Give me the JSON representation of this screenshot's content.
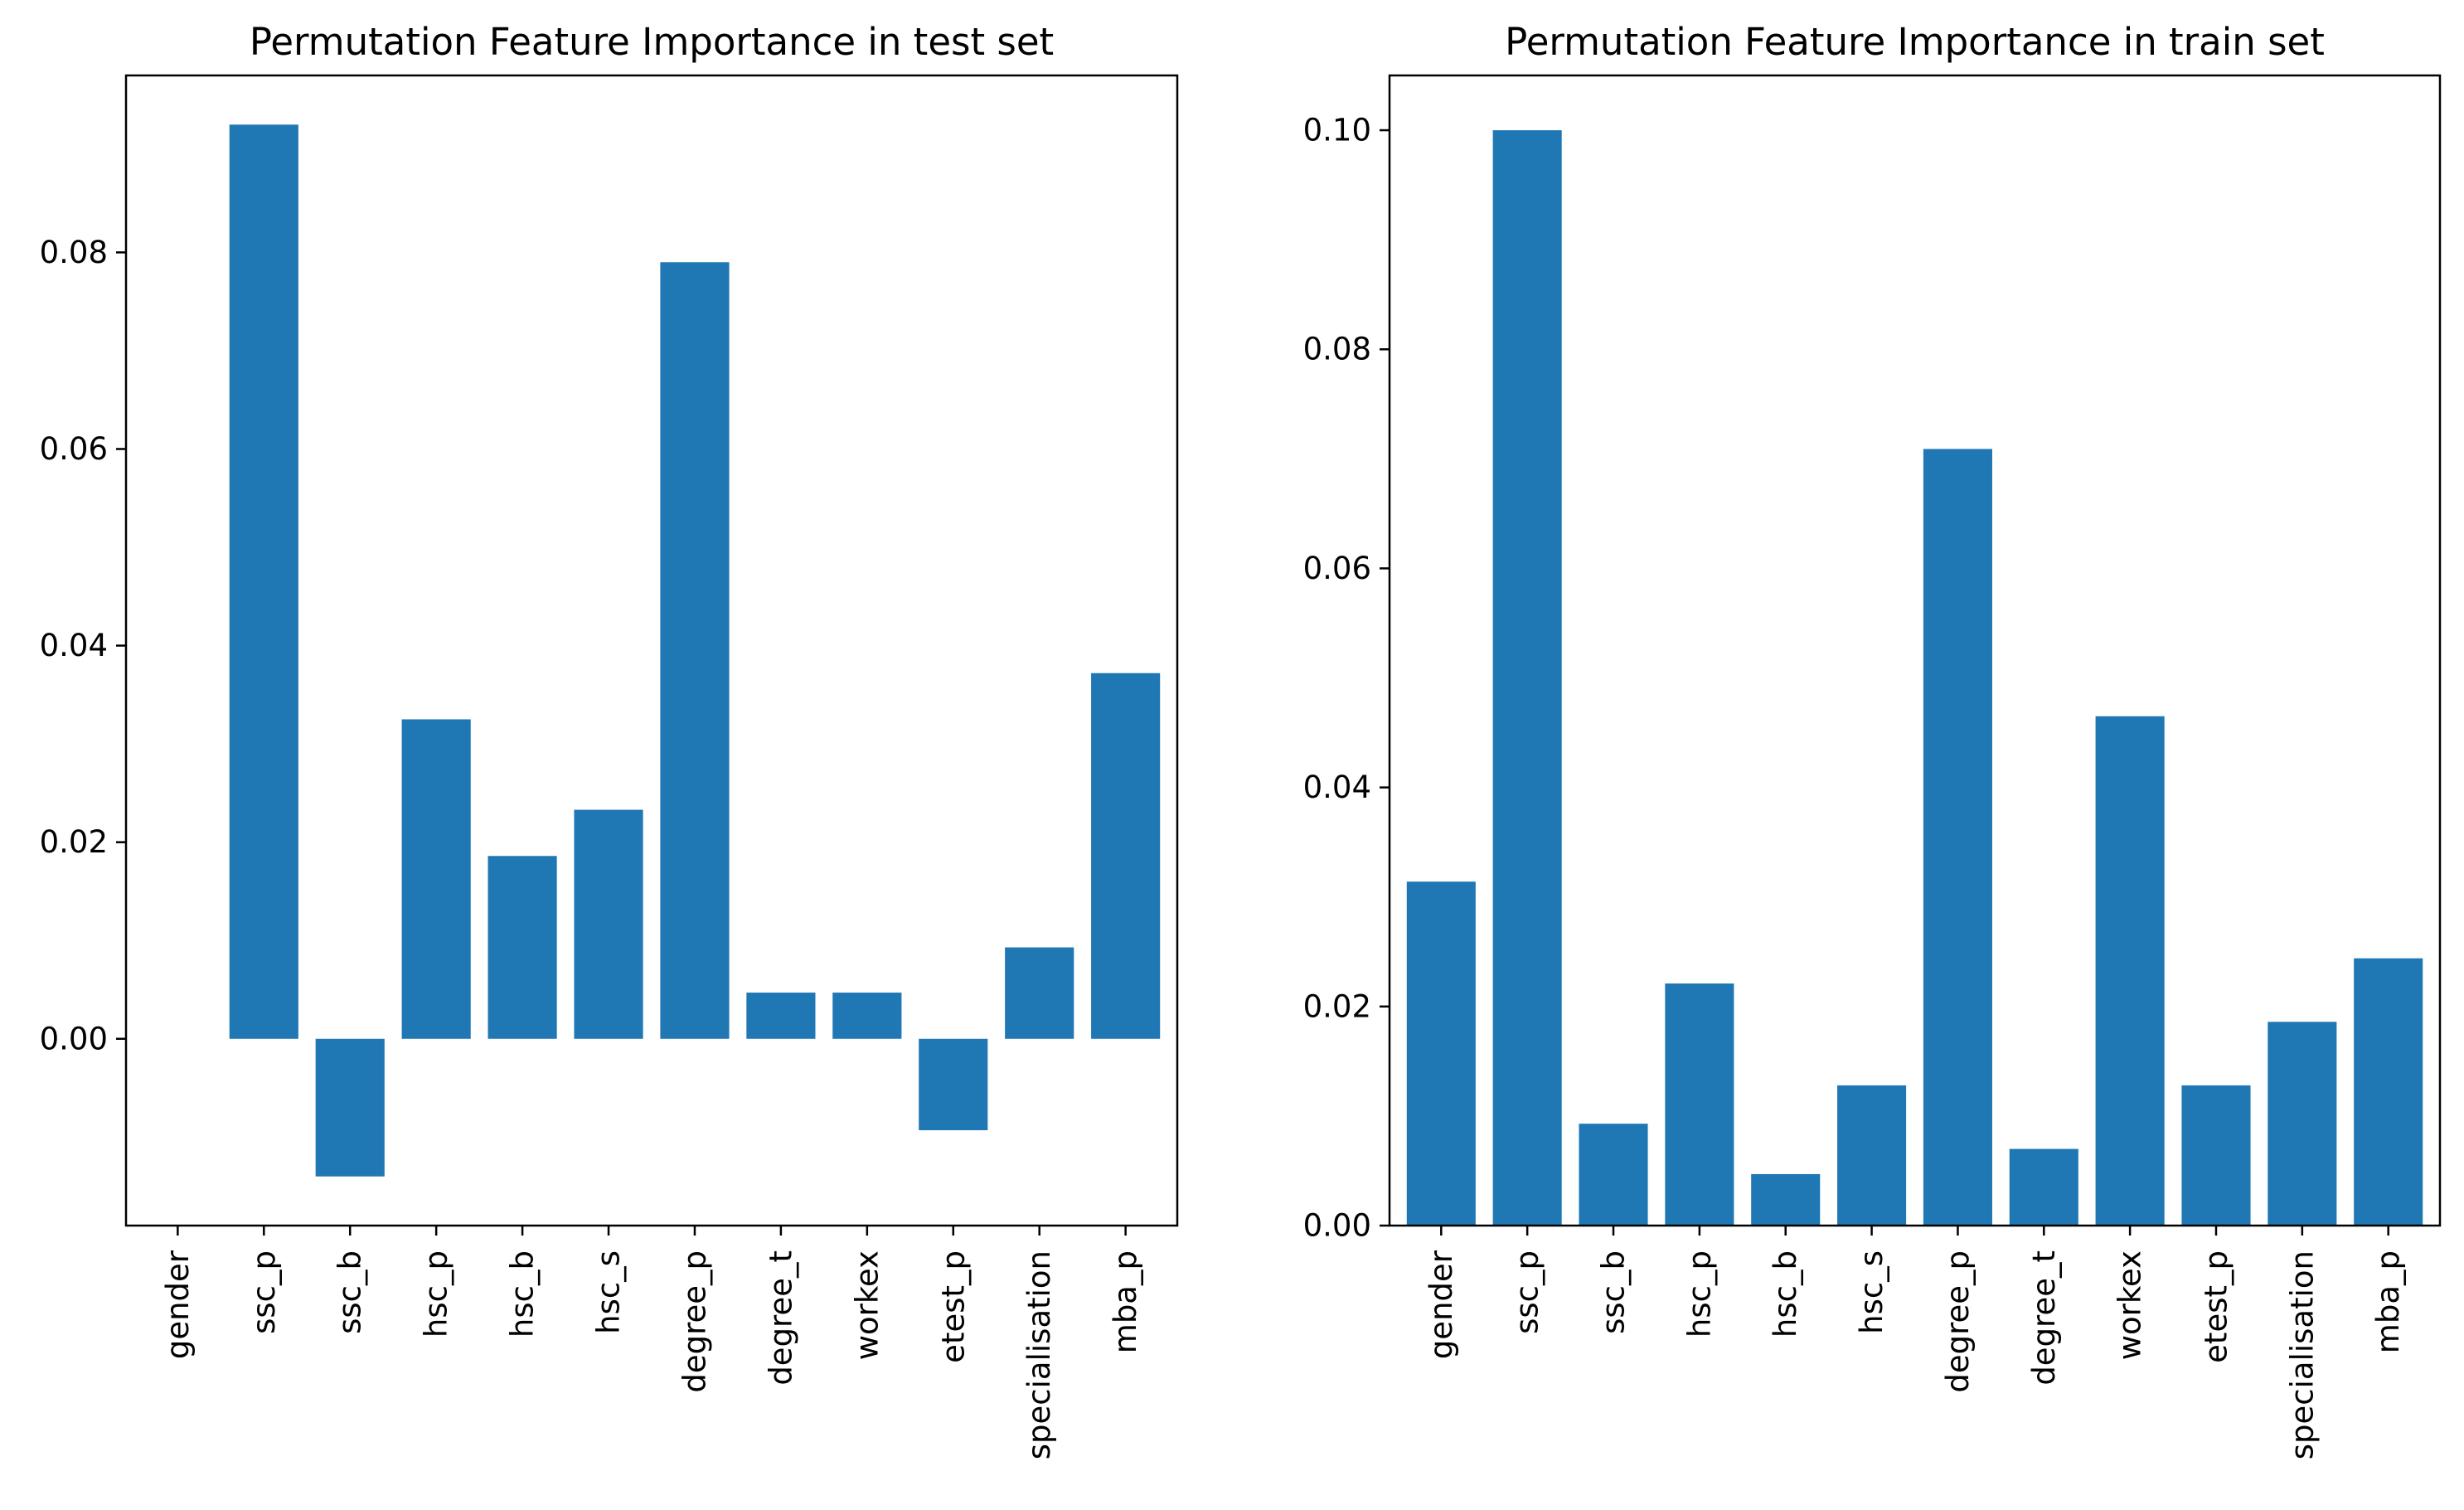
{
  "chart_data": [
    {
      "type": "bar",
      "title": "Permutation Feature Importance in test set",
      "xlabel": "",
      "ylabel": "",
      "categories": [
        "gender",
        "ssc_p",
        "ssc_b",
        "hsc_p",
        "hsc_b",
        "hsc_s",
        "degree_p",
        "degree_t",
        "workex",
        "etest_p",
        "specialisation",
        "mba_p"
      ],
      "values": [
        0.0,
        0.093,
        -0.014,
        0.0325,
        0.0186,
        0.0233,
        0.079,
        0.0047,
        0.0047,
        -0.0093,
        0.0093,
        0.0372
      ],
      "ylim": [
        -0.019,
        0.098
      ],
      "yticks": [
        0.0,
        0.02,
        0.04,
        0.06,
        0.08
      ],
      "ytick_labels": [
        "0.00",
        "0.02",
        "0.04",
        "0.06",
        "0.08"
      ],
      "color": "#1f77b4",
      "grid": false
    },
    {
      "type": "bar",
      "title": "Permutation Feature Importance in train set",
      "xlabel": "",
      "ylabel": "",
      "categories": [
        "gender",
        "ssc_p",
        "ssc_b",
        "hsc_p",
        "hsc_b",
        "hsc_s",
        "degree_p",
        "degree_t",
        "workex",
        "etest_p",
        "specialisation",
        "mba_p"
      ],
      "values": [
        0.0314,
        0.1,
        0.0093,
        0.0221,
        0.0047,
        0.0128,
        0.0709,
        0.007,
        0.0465,
        0.0128,
        0.0186,
        0.0244
      ],
      "ylim": [
        0.0,
        0.105
      ],
      "yticks": [
        0.0,
        0.02,
        0.04,
        0.06,
        0.08,
        0.1
      ],
      "ytick_labels": [
        "0.00",
        "0.02",
        "0.04",
        "0.06",
        "0.08",
        "0.10"
      ],
      "color": "#1f77b4",
      "grid": false
    }
  ]
}
